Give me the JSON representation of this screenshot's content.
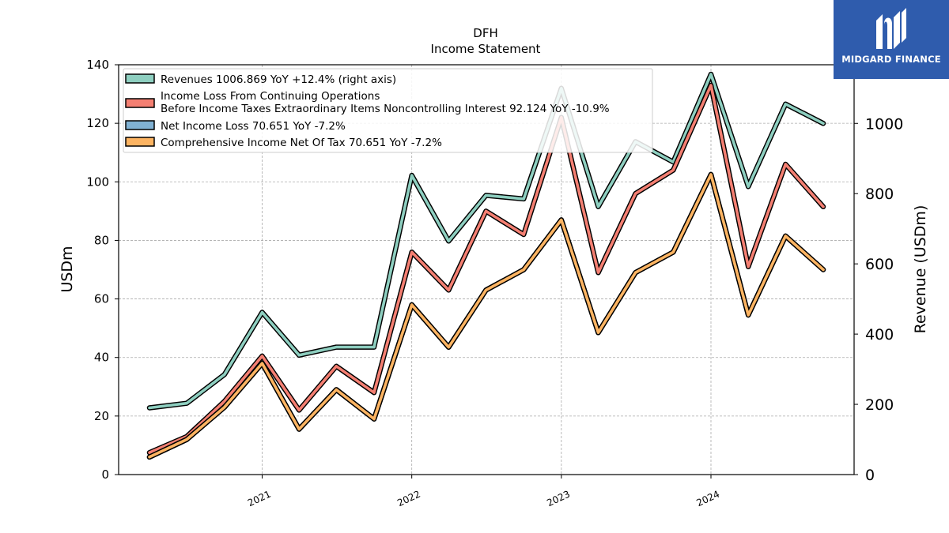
{
  "chart_data": {
    "type": "line",
    "title": "DFH",
    "subtitle": "Income Statement",
    "ylabel": "USDm",
    "ylabel_right": "Revenue (USDm)",
    "ylim": [
      0,
      140
    ],
    "ylim_right": [
      0,
      1167
    ],
    "yticks": [
      "0",
      "20",
      "40",
      "60",
      "80",
      "100",
      "120",
      "140"
    ],
    "yticks_right": [
      "0",
      "200",
      "400",
      "600",
      "800",
      "1000"
    ],
    "xticks": [
      "2021",
      "2022",
      "2023",
      "2024"
    ],
    "grid": true,
    "legend_position": "top-left",
    "x": [
      "2020-04-01",
      "2020-07-01",
      "2020-10-01",
      "2021-01-01",
      "2021-04-01",
      "2021-07-01",
      "2021-10-01",
      "2022-01-01",
      "2022-04-01",
      "2022-07-01",
      "2022-10-01",
      "2023-01-01",
      "2023-04-01",
      "2023-07-01",
      "2023-10-01",
      "2024-01-01",
      "2024-04-01",
      "2024-07-01",
      "2024-10-01"
    ],
    "series": [
      {
        "name": "Revenues",
        "legend": "Revenues  1006.869 YoY +12.4% (right axis)",
        "axis": "right",
        "color": "#8ecfc0",
        "values": [
          190,
          203,
          285,
          462,
          340,
          363,
          363,
          852,
          665,
          795,
          785,
          1100,
          763,
          948,
          890,
          1140,
          820,
          1055,
          1000
        ]
      },
      {
        "name": "Income Loss From Continuing Operations Before Income Taxes Extraordinary Items Noncontrolling Interest",
        "legend_lines": [
          "Income Loss From Continuing Operations",
          "Before Income Taxes Extraordinary Items Noncontrolling Interest  92.124 YoY -10.9%"
        ],
        "axis": "left",
        "color": "#f47f72",
        "values": [
          7.5,
          13,
          25,
          40.5,
          22,
          37,
          28,
          76,
          63,
          90,
          82,
          122,
          69,
          96,
          104,
          133,
          71,
          106,
          91.5
        ]
      },
      {
        "name": "Net Income Loss",
        "legend": "Net Income Loss  70.651 YoY -7.2%",
        "axis": "left",
        "color": "#80b1d3",
        "values": [
          6,
          12,
          23,
          38,
          15.5,
          29,
          19,
          58,
          43.5,
          63,
          70,
          87,
          48.5,
          69,
          76,
          102.5,
          54.5,
          81.5,
          70
        ]
      },
      {
        "name": "Comprehensive Income Net Of Tax",
        "legend": "Comprehensive Income Net Of Tax  70.651 YoY -7.2%",
        "axis": "left",
        "color": "#fdb462",
        "values": [
          6,
          12,
          23,
          38,
          15.5,
          29,
          19,
          58,
          43.5,
          63,
          70,
          87,
          48.5,
          69,
          76,
          102.5,
          54.5,
          81.5,
          70
        ]
      }
    ]
  },
  "logo": {
    "text": "MIDGARD FINANCE"
  }
}
